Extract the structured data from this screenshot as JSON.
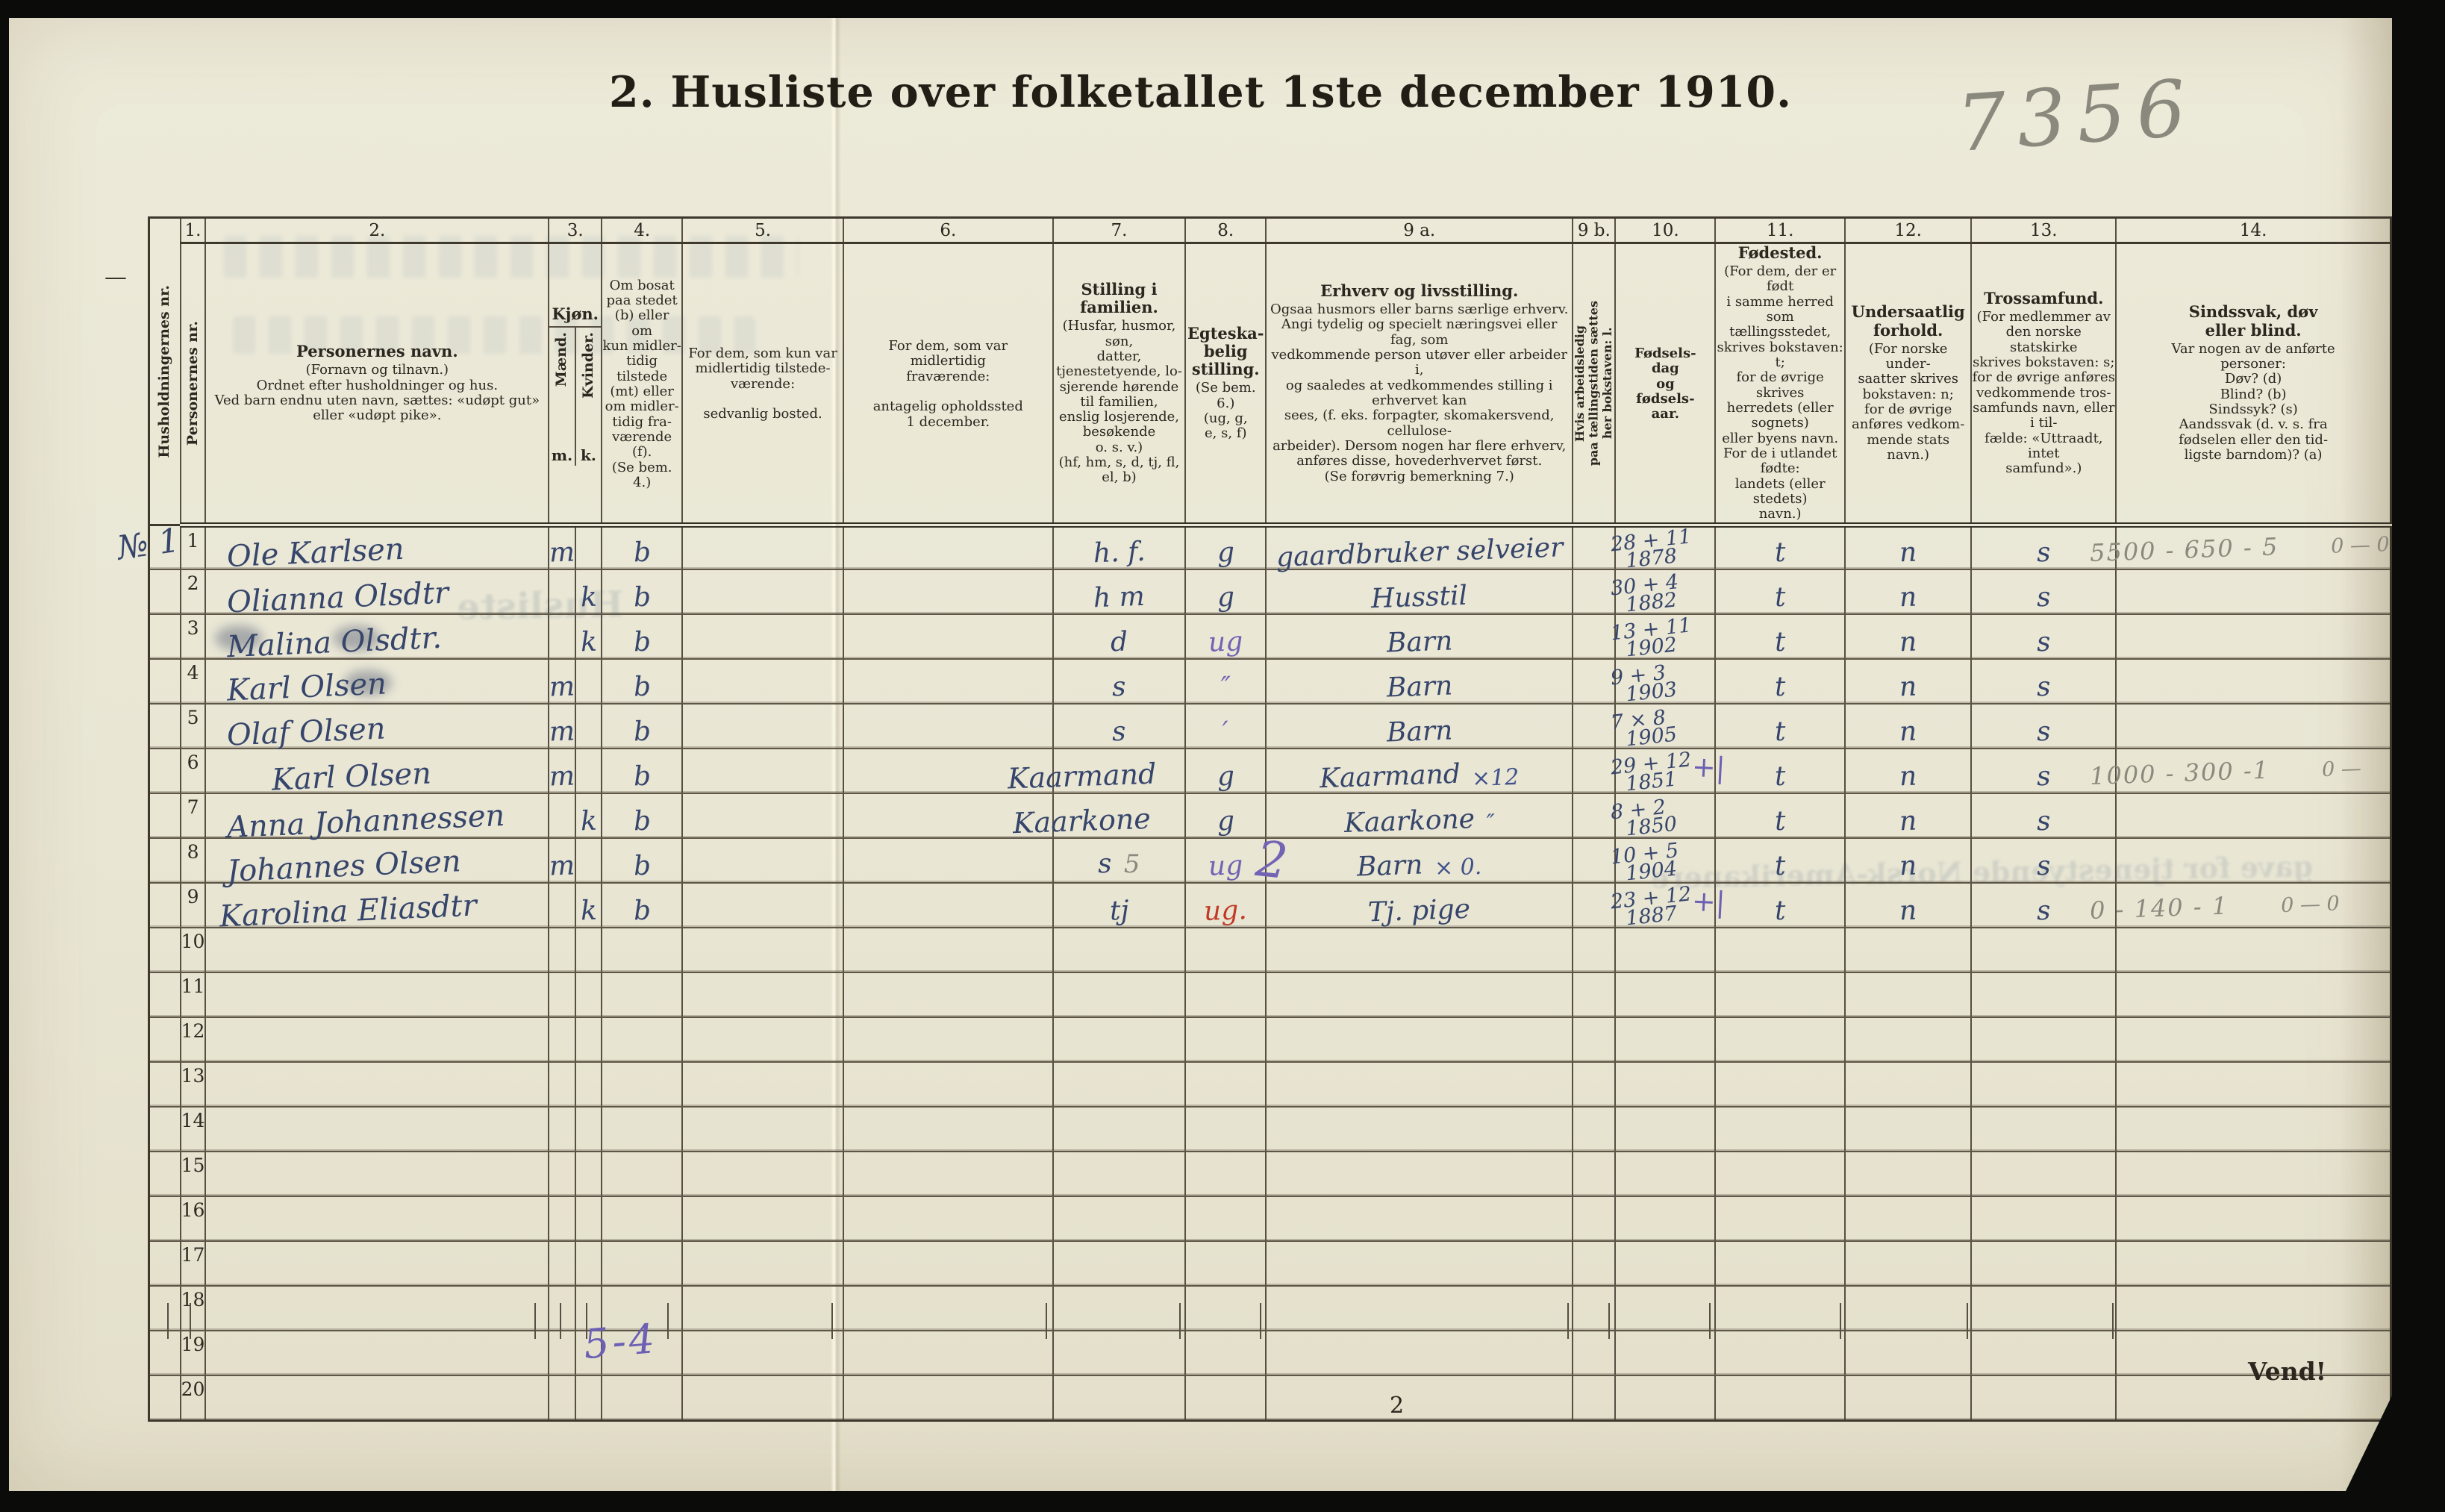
{
  "page": {
    "title": "2. Husliste over folketallet 1ste december 1910.",
    "corner_number": "7356",
    "page_number": "2",
    "turn_label": "Vend!",
    "tally_note": "5-4",
    "stray_dash": "—"
  },
  "bleedthrough": {
    "line1": "Husliste",
    "line2": "gave for tjenestyende Norsk-Amerikanere"
  },
  "ink": {
    "blue": "#36456b",
    "purple": "#7263b4",
    "red": "#c03a26",
    "pencil": "#8b897d",
    "paper": "#e9e6d4"
  },
  "table": {
    "col_numbers": {
      "c1": "1.",
      "c2": "2.",
      "c3": "3.",
      "c4": "4.",
      "c5": "5.",
      "c6": "6.",
      "c7": "7.",
      "c8": "8.",
      "c9a": "9 a.",
      "c9b": "9 b.",
      "c10": "10.",
      "c11": "11.",
      "c12": "12.",
      "c13": "13.",
      "c14": "14."
    },
    "headers": {
      "hush_v": "Husholdningernes nr.",
      "pers_v": "Personernes nr.",
      "navn_t": "Personernes navn.",
      "navn_b": "(Fornavn og tilnavn.)\nOrdnet efter husholdninger og hus.\nVed barn endnu uten navn, sættes: «udøpt gut»\neller «udøpt pike».",
      "kjon_t": "Kjøn.",
      "kjon_m_v": "Mænd.",
      "kjon_k_v": "Kvinder.",
      "kjon_m": "m.",
      "kjon_k": "k.",
      "c4_b": "Om bosat\npaa stedet\n(b) eller om\nkun midler-\ntidig tilstede\n(mt) eller\nom midler-\ntidig fra-\nværende (f).\n(Se bem. 4.)",
      "c5_b": "For dem, som kun var\nmidlertidig tilstede-\nværende:\n\nsedvanlig bosted.",
      "c6_b": "For dem, som var\nmidlertidig\nfraværende:\n\nantagelig opholdssted\n1 december.",
      "c7_t": "Stilling i familien.",
      "c7_b": "(Husfar, husmor, søn,\ndatter, tjenestetyende, lo-\nsjerende hørende til familien,\nenslig losjerende, besøkende\no. s. v.)\n(hf, hm, s, d, tj, fl,\nel, b)",
      "c8_t": "Egteska-\nbelig\nstilling.",
      "c8_b": "(Se bem. 6.)\n(ug, g,\ne, s, f)",
      "c9a_t": "Erhverv og livsstilling.",
      "c9a_b": "Ogsaa husmors eller barns særlige erhverv.\nAngi tydelig og specielt næringsvei eller fag, som\nvedkommende person utøver eller arbeider i,\nog saaledes at vedkommendes stilling i erhvervet kan\nsees, (f. eks. forpagter, skomakersvend, cellulose-\narbeider). Dersom nogen har flere erhverv,\nanføres disse, hovederhvervet først.\n(Se forøvrig bemerkning 7.)",
      "c9b_v": "Hvis arbeidsledig\npaa tællingstiden sættes\nher bokstaven: l.",
      "c10_b": "Fødsels-\ndag\nog\nfødsels-\naar.",
      "c11_t": "Fødested.",
      "c11_b": "(For dem, der er født\ni samme herred som\ntællingsstedet,\nskrives bokstaven: t;\nfor de øvrige skrives\nherredets (eller sognets)\neller byens navn.\nFor de i utlandet fødte:\nlandets (eller stedets)\nnavn.)",
      "c12_t": "Undersaatlig\nforhold.",
      "c12_b": "(For norske under-\nsaatter skrives\nbokstaven: n;\nfor de øvrige\nanføres vedkom-\nmende stats navn.)",
      "c13_t": "Trossamfund.",
      "c13_b": "(For medlemmer av\nden norske statskirke\nskrives bokstaven: s;\nfor de øvrige anføres\nvedkommende tros-\nsamfunds navn, eller i til-\nfælde: «Uttraadt, intet\nsamfund».)",
      "c14_t": "Sindssvak, døv\neller blind.",
      "c14_b": "Var nogen av de anførte\npersoner:\nDøv?            (d)\nBlind?          (b)\nSindssyk?   (s)\nAandssvak (d. v. s. fra\nfødselen eller den tid-\nligste barndom)?  (a)"
    },
    "rows": [
      {
        "nr": "1",
        "hh": "№ 1",
        "name": "Ole Karlsen",
        "m": "m",
        "bosat": "b",
        "c7": "h. f.",
        "c8": "g",
        "c9a": "gaardbruker selveier",
        "c10a": "28 + 11",
        "c10b": "1878",
        "c11": "t",
        "c12": "n",
        "c13": "s",
        "c14a": "5500 - 650 - 5",
        "c14b": "0 — 0"
      },
      {
        "nr": "2",
        "name": "Olianna Olsdtr",
        "k": "k",
        "bosat": "b",
        "c7": "h m",
        "c8": "g",
        "c9a": "Husstil",
        "c10a": "30 + 4",
        "c10b": "1882",
        "c11": "t",
        "c12": "n",
        "c13": "s"
      },
      {
        "nr": "3",
        "name": "Malina Olsdtr.",
        "k": "k",
        "bosat": "b",
        "blots": [
          12,
          170
        ],
        "c7": "d",
        "c8": "ug",
        "c8_style": "purple",
        "c9a": "Barn",
        "c10a": "13 + 11",
        "c10b": "1902",
        "c11": "t",
        "c12": "n",
        "c13": "s"
      },
      {
        "nr": "4",
        "name": "Karl Olsen",
        "m": "m",
        "bosat": "b",
        "blots": [
          185
        ],
        "c7": "s",
        "c8": "″",
        "c8_style": "purple",
        "c9a": "Barn",
        "c10a": "9 + 3",
        "c10b": "1903",
        "c11": "t",
        "c12": "n",
        "c13": "s"
      },
      {
        "nr": "5",
        "name": "Olaf Olsen",
        "m": "m",
        "bosat": "b",
        "c7": "s",
        "c8": "′",
        "c8_style": "purple",
        "c9a": "Barn",
        "c10a": "7 × 8",
        "c10b": "1905",
        "c11": "t",
        "c12": "n",
        "c13": "s"
      },
      {
        "nr": "6",
        "name": "Karl Olsen",
        "indent": 60,
        "m": "m",
        "bosat": "b",
        "c7": "Kaarmand",
        "c7_wide": true,
        "c8": "g",
        "c9a": "Kaarmand",
        "c9x": "×12",
        "c10a": "29 + 12",
        "c10b": "1851",
        "c10x": "+|",
        "c11": "t",
        "c12": "n",
        "c13": "s",
        "c14a": "1000 - 300 -1",
        "c14b": "0 —"
      },
      {
        "nr": "7",
        "name": "Anna Johannessen",
        "k": "k",
        "bosat": "b",
        "c7": "Kaarkone",
        "c7_wide": true,
        "c8": "g",
        "c9a": "Kaarkone",
        "c9x": "″",
        "c10a": "8 + 2",
        "c10b": "1850",
        "c11": "t",
        "c12": "n",
        "c13": "s"
      },
      {
        "nr": "8",
        "name": "Johannes Olsen",
        "m": "m",
        "bosat": "b",
        "c7": "s",
        "c7x": "5",
        "c8": "ug",
        "c8_style": "purple",
        "c8x": "2",
        "c9a": "Barn",
        "c9x": "× 0.",
        "c10a": "10 + 5",
        "c10b": "1904",
        "c11": "t",
        "c12": "n",
        "c13": "s"
      },
      {
        "nr": "9",
        "name": "Karolina Eliasdtr",
        "indent": -10,
        "k": "k",
        "bosat": "b",
        "c7": "tj",
        "c8": "ug.",
        "c8_style": "red",
        "c9a": "Tj. pige",
        "c10a": "23 + 12",
        "c10b": "1887",
        "c10x": "+|",
        "c11": "t",
        "c12": "n",
        "c13": "s",
        "c14a": "0 - 140 - 1",
        "c14b": "0 — 0"
      },
      {
        "nr": "10"
      },
      {
        "nr": "11"
      },
      {
        "nr": "12"
      },
      {
        "nr": "13"
      },
      {
        "nr": "14"
      },
      {
        "nr": "15"
      },
      {
        "nr": "16"
      },
      {
        "nr": "17"
      },
      {
        "nr": "18"
      },
      {
        "nr": "19"
      },
      {
        "nr": "20"
      }
    ]
  }
}
